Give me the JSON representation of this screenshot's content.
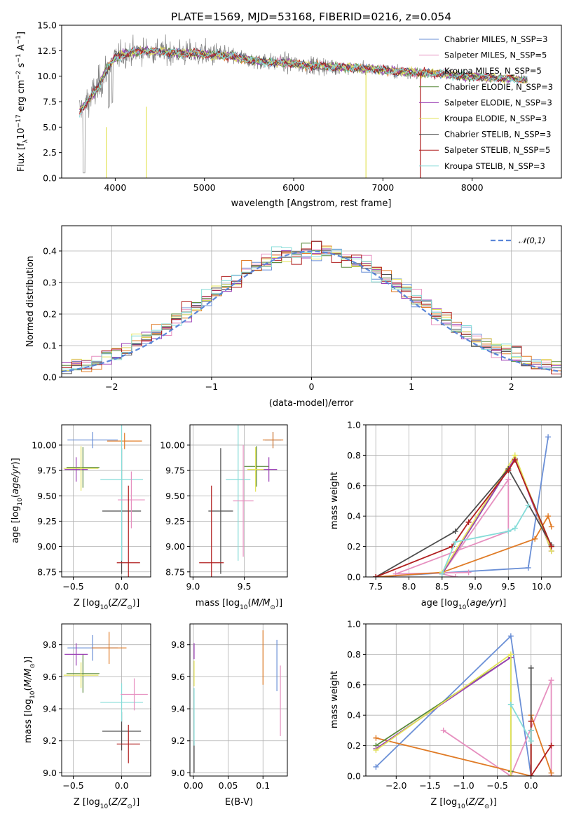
{
  "figure_title": "PLATE=1569, MJD=53168, FIBERID=0216, z=0.054",
  "chart_data": [
    {
      "id": "spectrum",
      "type": "line",
      "xlabel": "wavelength [Angstrom, rest frame]",
      "ylabel": "Flux [f_λ10^-17 erg cm^-2 s^-1 A^-1]",
      "xlim": [
        3400,
        9000
      ],
      "ylim": [
        0,
        15
      ],
      "xticks": [
        4000,
        5000,
        6000,
        7000,
        8000
      ],
      "yticks": [
        0.0,
        2.5,
        5.0,
        7.5,
        10.0,
        12.5,
        15.0
      ],
      "grid": false,
      "legend_position": "top-right",
      "data_color": "#808080",
      "series": [
        {
          "name": "Chabrier MILES, N_SSP=3",
          "color": "#6a8fd6"
        },
        {
          "name": "Salpeter MILES, N_SSP=5",
          "color": "#e68fbf"
        },
        {
          "name": "Kroupa MILES, N_SSP=5",
          "color": "#e07b26"
        },
        {
          "name": "Chabrier ELODIE, N_SSP=3",
          "color": "#5a8a3c"
        },
        {
          "name": "Salpeter ELODIE, N_SSP=3",
          "color": "#9b3fb5"
        },
        {
          "name": "Kroupa ELODIE, N_SSP=3",
          "color": "#e3e35a"
        },
        {
          "name": "Chabrier STELIB, N_SSP=3",
          "color": "#4d4d4d"
        },
        {
          "name": "Salpeter STELIB, N_SSP=5",
          "color": "#b01e1e"
        },
        {
          "name": "Kroupa STELIB, N_SSP=3",
          "color": "#86dcd8"
        }
      ],
      "continuum_knots": {
        "x": [
          3600,
          3700,
          3800,
          3900,
          4000,
          4100,
          4300,
          4500,
          4700,
          4900,
          5100,
          5300,
          5500,
          5700,
          5900,
          6100,
          6300,
          6500,
          6700,
          6900,
          7100,
          7300,
          7500,
          7700,
          7900,
          8100,
          8300,
          8500
        ],
        "y": [
          6.5,
          7.6,
          8.8,
          10.6,
          11.8,
          12.2,
          12.5,
          12.4,
          12.3,
          12.2,
          12.1,
          12.0,
          11.6,
          11.4,
          11.3,
          11.1,
          11.0,
          10.9,
          10.8,
          10.7,
          10.5,
          10.4,
          10.3,
          10.2,
          10.0,
          9.9,
          9.8,
          9.7
        ]
      }
    },
    {
      "id": "residuals",
      "type": "histogram",
      "xlabel": "(data-model)/error",
      "ylabel": "Normed distribution",
      "xlim": [
        -2.5,
        2.5
      ],
      "ylim": [
        0,
        0.48
      ],
      "xticks": [
        -2,
        -1,
        0,
        1,
        2
      ],
      "yticks": [
        0.0,
        0.1,
        0.2,
        0.3,
        0.4
      ],
      "grid": true,
      "legend_position": "top-right",
      "reference_label": "𝒩(0,1)",
      "reference_color": "#5b86d8",
      "bin_width": 0.1,
      "bin_start": -2.5
    },
    {
      "id": "age_vs_Z",
      "type": "errorbar",
      "xlabel": "Z [log10(Z/Z⊙)]",
      "ylabel": "age [log10(age/yr)]",
      "xlim": [
        -0.62,
        0.3
      ],
      "ylim": [
        8.7,
        10.2
      ],
      "xticks": [
        -0.5,
        0.0
      ],
      "yticks": [
        8.75,
        9.0,
        9.25,
        9.5,
        9.75,
        10.0
      ],
      "grid": true,
      "points": [
        {
          "series": "Chabrier MILES",
          "x": -0.3,
          "y": 10.05,
          "xerr": 0.26,
          "yerr": 0.08
        },
        {
          "series": "Kroupa MILES",
          "x": 0.03,
          "y": 10.04,
          "xerr": 0.18,
          "yerr": 0.08
        },
        {
          "series": "Chabrier ELODIE",
          "x": -0.4,
          "y": 9.78,
          "xerr": 0.17,
          "yerr": 0.2
        },
        {
          "series": "Salpeter ELODIE",
          "x": -0.47,
          "y": 9.76,
          "xerr": 0.12,
          "yerr": 0.12
        },
        {
          "series": "Kroupa ELODIE",
          "x": -0.42,
          "y": 9.77,
          "xerr": 0.18,
          "yerr": 0.22
        },
        {
          "series": "Chabrier STELIB",
          "x": 0.0,
          "y": 9.35,
          "xerr": 0.2,
          "yerr": 0.62
        },
        {
          "series": "Kroupa STELIB",
          "x": 0.0,
          "y": 9.66,
          "xerr": 0.22,
          "yerr": 0.8
        },
        {
          "series": "Salpeter MILES",
          "x": 0.1,
          "y": 9.46,
          "xerr": 0.14,
          "yerr": 0.28
        },
        {
          "series": "Salpeter STELIB",
          "x": 0.07,
          "y": 8.84,
          "xerr": 0.12,
          "yerr": 0.76
        }
      ]
    },
    {
      "id": "age_vs_mass",
      "type": "errorbar",
      "xlabel": "mass [log10(M/M⊙)]",
      "ylabel": "",
      "xlim": [
        8.97,
        9.92
      ],
      "ylim": [
        8.7,
        10.2
      ],
      "xticks": [
        9.0,
        9.5
      ],
      "yticks": [
        8.75,
        9.0,
        9.25,
        9.5,
        9.75,
        10.0
      ],
      "grid": true,
      "points": [
        {
          "series": "Chabrier MILES",
          "x": 9.78,
          "y": 10.05,
          "xerr": 0.08,
          "yerr": 0.08
        },
        {
          "series": "Kroupa MILES",
          "x": 9.78,
          "y": 10.05,
          "xerr": 0.1,
          "yerr": 0.08
        },
        {
          "series": "Chabrier ELODIE",
          "x": 9.62,
          "y": 9.79,
          "xerr": 0.12,
          "yerr": 0.2
        },
        {
          "series": "Salpeter ELODIE",
          "x": 9.74,
          "y": 9.76,
          "xerr": 0.08,
          "yerr": 0.12
        },
        {
          "series": "Kroupa ELODIE",
          "x": 9.61,
          "y": 9.76,
          "xerr": 0.08,
          "yerr": 0.22
        },
        {
          "series": "Chabrier STELIB",
          "x": 9.27,
          "y": 9.35,
          "xerr": 0.12,
          "yerr": 0.62
        },
        {
          "series": "Kroupa STELIB",
          "x": 9.44,
          "y": 9.66,
          "xerr": 0.12,
          "yerr": 0.8
        },
        {
          "series": "Salpeter MILES",
          "x": 9.49,
          "y": 9.45,
          "xerr": 0.1,
          "yerr": 0.55
        },
        {
          "series": "Salpeter STELIB",
          "x": 9.18,
          "y": 8.84,
          "xerr": 0.12,
          "yerr": 0.76
        }
      ]
    },
    {
      "id": "weight_vs_age",
      "type": "line",
      "xlabel": "age [log10(age/yr)]",
      "ylabel": "mass weight",
      "xlim": [
        7.35,
        10.3
      ],
      "ylim": [
        0,
        1
      ],
      "xticks": [
        7.5,
        8.0,
        8.5,
        9.0,
        9.5,
        10.0
      ],
      "yticks": [
        0.0,
        0.2,
        0.4,
        0.6,
        0.8,
        1.0
      ],
      "grid": true,
      "series": [
        {
          "name": "Chabrier MILES",
          "x": [
            7.5,
            9.8,
            10.1
          ],
          "y": [
            0.0,
            0.06,
            0.92
          ]
        },
        {
          "name": "Salpeter MILES",
          "x": [
            8.7,
            8.5,
            9.5,
            9.5,
            7.8,
            8.9
          ],
          "y": [
            0.0,
            0.02,
            0.64,
            0.3,
            0.02,
            0.03
          ]
        },
        {
          "name": "Kroupa MILES",
          "x": [
            7.5,
            8.5,
            9.9,
            10.1,
            10.15
          ],
          "y": [
            0.0,
            0.03,
            0.25,
            0.4,
            0.33
          ]
        },
        {
          "name": "Chabrier ELODIE",
          "x": [
            8.5,
            9.6,
            10.15
          ],
          "y": [
            0.02,
            0.78,
            0.2
          ]
        },
        {
          "name": "Salpeter ELODIE",
          "x": [
            8.5,
            9.6,
            10.15
          ],
          "y": [
            0.02,
            0.78,
            0.17
          ]
        },
        {
          "name": "Kroupa ELODIE",
          "x": [
            8.5,
            9.6,
            10.15
          ],
          "y": [
            0.03,
            0.8,
            0.17
          ]
        },
        {
          "name": "Chabrier STELIB",
          "x": [
            7.5,
            8.7,
            9.5,
            10.15
          ],
          "y": [
            0.0,
            0.3,
            0.71,
            0.21
          ]
        },
        {
          "name": "Salpeter STELIB",
          "x": [
            7.5,
            8.65,
            8.9,
            9.5,
            9.6,
            10.15
          ],
          "y": [
            0.0,
            0.2,
            0.36,
            0.7,
            0.77,
            0.2
          ]
        },
        {
          "name": "Kroupa STELIB",
          "x": [
            8.5,
            8.7,
            9.5,
            9.6,
            9.8
          ],
          "y": [
            0.02,
            0.23,
            0.3,
            0.32,
            0.47
          ]
        }
      ]
    },
    {
      "id": "mass_vs_Z",
      "type": "errorbar",
      "xlabel": "Z [log10(Z/Z⊙)]",
      "ylabel": "mass [log10(M/M⊙)]",
      "xlim": [
        -0.62,
        0.3
      ],
      "ylim": [
        8.98,
        9.93
      ],
      "xticks": [
        -0.5,
        0.0
      ],
      "yticks": [
        9.0,
        9.2,
        9.4,
        9.6,
        9.8
      ],
      "grid": true,
      "points": [
        {
          "series": "Chabrier MILES",
          "x": -0.3,
          "y": 9.78,
          "xerr": 0.26,
          "yerr": 0.08
        },
        {
          "series": "Kroupa MILES",
          "x": -0.13,
          "y": 9.78,
          "xerr": 0.18,
          "yerr": 0.1
        },
        {
          "series": "Chabrier ELODIE",
          "x": -0.4,
          "y": 9.62,
          "xerr": 0.17,
          "yerr": 0.12
        },
        {
          "series": "Salpeter ELODIE",
          "x": -0.47,
          "y": 9.74,
          "xerr": 0.12,
          "yerr": 0.07
        },
        {
          "series": "Kroupa ELODIE",
          "x": -0.42,
          "y": 9.61,
          "xerr": 0.18,
          "yerr": 0.08
        },
        {
          "series": "Chabrier STELIB",
          "x": 0.0,
          "y": 9.26,
          "xerr": 0.2,
          "yerr": 0.12
        },
        {
          "series": "Kroupa STELIB",
          "x": 0.0,
          "y": 9.44,
          "xerr": 0.22,
          "yerr": 0.12
        },
        {
          "series": "Salpeter MILES",
          "x": 0.13,
          "y": 9.49,
          "xerr": 0.14,
          "yerr": 0.1
        },
        {
          "series": "Salpeter STELIB",
          "x": 0.07,
          "y": 9.18,
          "xerr": 0.12,
          "yerr": 0.12
        }
      ]
    },
    {
      "id": "mass_vs_ebv",
      "type": "errorbar",
      "xlabel": "E(B-V)",
      "ylabel": "",
      "xlim": [
        -0.005,
        0.135
      ],
      "ylim": [
        8.98,
        9.93
      ],
      "xticks": [
        0.0,
        0.05,
        0.1
      ],
      "yticks": [
        9.0,
        9.2,
        9.4,
        9.6,
        9.8
      ],
      "grid": true,
      "points": [
        {
          "series": "Chabrier MILES",
          "x": 0.12,
          "y": 9.67,
          "xerr": 0,
          "yerr": 0.16
        },
        {
          "series": "Salpeter MILES",
          "x": 0.125,
          "y": 9.45,
          "xerr": 0,
          "yerr": 0.22
        },
        {
          "series": "Kroupa MILES",
          "x": 0.1,
          "y": 9.72,
          "xerr": 0,
          "yerr": 0.17
        },
        {
          "series": "Salpeter ELODIE",
          "x": 0.001,
          "y": 9.76,
          "xerr": 0,
          "yerr": 0.05
        },
        {
          "series": "Kroupa ELODIE",
          "x": 0.001,
          "y": 9.62,
          "xerr": 0,
          "yerr": 0.08
        },
        {
          "series": "Chabrier STELIB",
          "x": 0.001,
          "y": 9.1,
          "xerr": 0,
          "yerr": 0.1
        },
        {
          "series": "Kroupa STELIB",
          "x": 0.001,
          "y": 9.35,
          "xerr": 0,
          "yerr": 0.18
        }
      ]
    },
    {
      "id": "weight_vs_Z",
      "type": "line",
      "xlabel": "Z [log10(Z/Z⊙)]",
      "ylabel": "mass weight",
      "xlim": [
        -2.45,
        0.45
      ],
      "ylim": [
        0,
        1
      ],
      "xticks": [
        -2.0,
        -1.5,
        -1.0,
        -0.5,
        0.0
      ],
      "yticks": [
        0.0,
        0.2,
        0.4,
        0.6,
        0.8,
        1.0
      ],
      "grid": true,
      "series": [
        {
          "name": "Chabrier MILES",
          "x": [
            -2.3,
            -0.3,
            0.0
          ],
          "y": [
            0.06,
            0.92,
            0.0
          ]
        },
        {
          "name": "Salpeter MILES",
          "x": [
            -1.3,
            -0.3,
            0.3,
            0.3
          ],
          "y": [
            0.3,
            0.0,
            0.63,
            0.0
          ]
        },
        {
          "name": "Kroupa MILES",
          "x": [
            -2.3,
            0.0,
            0.0,
            0.3
          ],
          "y": [
            0.25,
            0.0,
            0.4,
            0.02
          ]
        },
        {
          "name": "Chabrier ELODIE",
          "x": [
            -2.3,
            -0.3,
            -0.3
          ],
          "y": [
            0.2,
            0.78,
            0.03
          ]
        },
        {
          "name": "Salpeter ELODIE",
          "x": [
            -2.3,
            -0.3
          ],
          "y": [
            0.18,
            0.78
          ]
        },
        {
          "name": "Kroupa ELODIE",
          "x": [
            -2.3,
            -0.3,
            -0.3
          ],
          "y": [
            0.17,
            0.8,
            0.0
          ]
        },
        {
          "name": "Chabrier STELIB",
          "x": [
            0.0,
            0.0,
            0.0
          ],
          "y": [
            0.71,
            0.3,
            0.0
          ]
        },
        {
          "name": "Salpeter STELIB",
          "x": [
            0.0,
            0.0,
            0.3
          ],
          "y": [
            0.36,
            0.0,
            0.2
          ]
        },
        {
          "name": "Kroupa STELIB",
          "x": [
            -0.3,
            -0.3,
            0.0,
            0.0
          ],
          "y": [
            0.47,
            0.47,
            0.23,
            0.3
          ]
        }
      ]
    }
  ]
}
